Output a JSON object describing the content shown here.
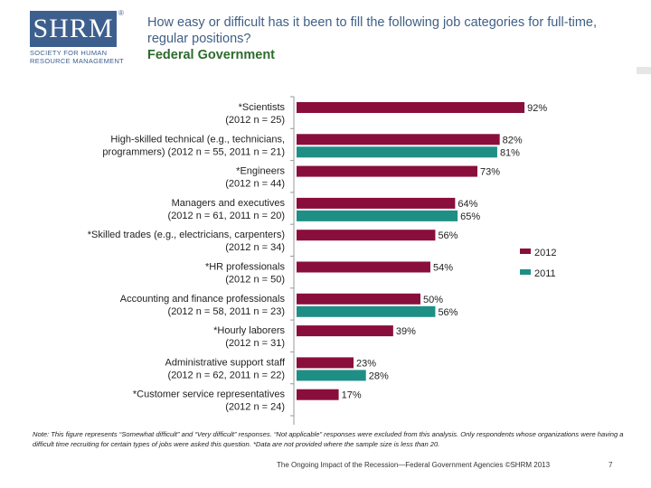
{
  "logo": {
    "mark": "SHRM",
    "registered": "®",
    "tagline_line1": "SOCIETY FOR HUMAN",
    "tagline_line2": "RESOURCE MANAGEMENT"
  },
  "header": {
    "title": "How easy or difficult has it been to fill the following job categories for full-time, regular positions?",
    "subtitle": "Federal Government"
  },
  "colors": {
    "bar_2012": "#8a0e3c",
    "bar_2011": "#1f8f86",
    "title": "#3f5f86",
    "subtitle": "#2e6b2e"
  },
  "chart_data": {
    "type": "bar",
    "orientation": "horizontal",
    "xlim": [
      0,
      100
    ],
    "legend": {
      "position": "right",
      "entries": [
        "2012",
        "2011"
      ]
    },
    "categories": [
      {
        "label_line1": "*Scientists",
        "label_line2": "(2012 n = 25)"
      },
      {
        "label_line1": "High-skilled technical (e.g., technicians,",
        "label_line2": "programmers) (2012 n = 55, 2011 n = 21)"
      },
      {
        "label_line1": "*Engineers",
        "label_line2": "(2012 n = 44)"
      },
      {
        "label_line1": "Managers and executives",
        "label_line2": "(2012 n = 61, 2011 n = 20)"
      },
      {
        "label_line1": "*Skilled trades (e.g., electricians, carpenters)",
        "label_line2": "(2012 n = 34)"
      },
      {
        "label_line1": "*HR professionals",
        "label_line2": "(2012 n = 50)"
      },
      {
        "label_line1": "Accounting and finance professionals",
        "label_line2": "(2012 n = 58, 2011 n = 23)"
      },
      {
        "label_line1": "*Hourly laborers",
        "label_line2": "(2012 n = 31)"
      },
      {
        "label_line1": "Administrative support staff",
        "label_line2": "(2012 n = 62, 2011 n = 22)"
      },
      {
        "label_line1": "*Customer service representatives",
        "label_line2": "(2012 n = 24)"
      }
    ],
    "series": [
      {
        "name": "2012",
        "values": [
          92,
          82,
          73,
          64,
          56,
          54,
          50,
          39,
          23,
          17
        ]
      },
      {
        "name": "2011",
        "values": [
          null,
          81,
          null,
          65,
          null,
          null,
          56,
          null,
          28,
          null
        ]
      }
    ],
    "value_suffix": "%"
  },
  "note": "Note: This figure represents “Somewhat difficult” and “Very difficult” responses. “Not applicable” responses were excluded from this analysis. Only respondents whose organizations were having a difficult time recruiting for certain types of jobs were asked this question. *Data are not provided where the sample size is less than 20.",
  "footer": {
    "source": "The Ongoing Impact of the Recession—Federal Government Agencies ©SHRM 2013",
    "page": "7"
  }
}
